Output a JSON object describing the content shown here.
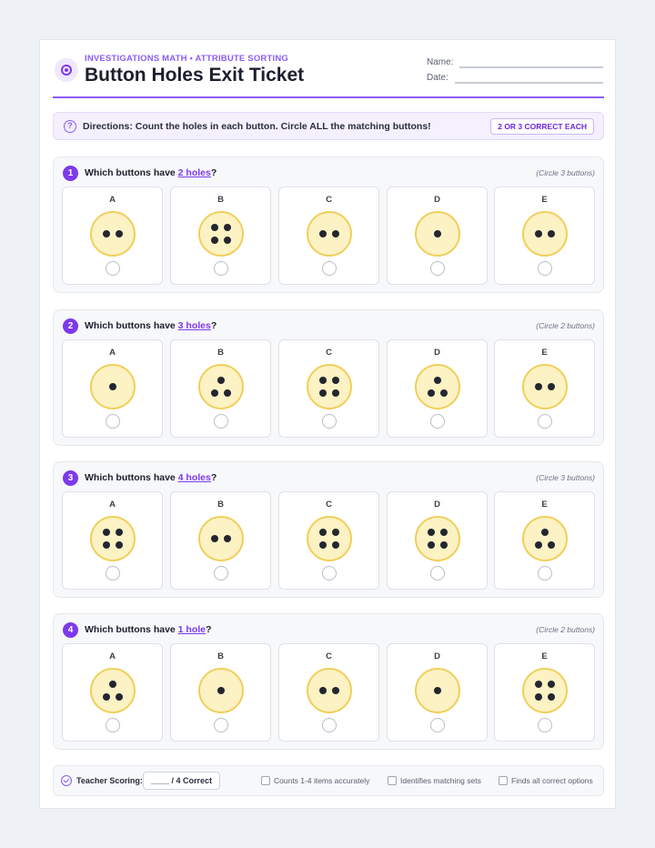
{
  "header": {
    "kicker": "INVESTIGATIONS MATH • ATTRIBUTE SORTING",
    "title": "Button Holes Exit Ticket",
    "name_label": "Name:",
    "date_label": "Date:",
    "logo_icon": "button-target-icon"
  },
  "directions": {
    "icon": "question-circle-icon",
    "icon_glyph": "?",
    "text": "Directions: Count the holes in each button. Circle ALL the matching buttons!",
    "badge": "2 OR 3 CORRECT EACH"
  },
  "questions": [
    {
      "number": "1",
      "prefix": "Which buttons have ",
      "highlight": "2 holes",
      "suffix": "?",
      "hint": "(Circle 3 buttons)",
      "buttons": [
        {
          "label": "A",
          "holes": 2
        },
        {
          "label": "B",
          "holes": 4
        },
        {
          "label": "C",
          "holes": 2
        },
        {
          "label": "D",
          "holes": 1
        },
        {
          "label": "E",
          "holes": 2
        }
      ]
    },
    {
      "number": "2",
      "prefix": "Which buttons have ",
      "highlight": "3 holes",
      "suffix": "?",
      "hint": "(Circle 2 buttons)",
      "buttons": [
        {
          "label": "A",
          "holes": 1
        },
        {
          "label": "B",
          "holes": 3
        },
        {
          "label": "C",
          "holes": 4
        },
        {
          "label": "D",
          "holes": 3
        },
        {
          "label": "E",
          "holes": 2
        }
      ]
    },
    {
      "number": "3",
      "prefix": "Which buttons have ",
      "highlight": "4 holes",
      "suffix": "?",
      "hint": "(Circle 3 buttons)",
      "buttons": [
        {
          "label": "A",
          "holes": 4
        },
        {
          "label": "B",
          "holes": 2
        },
        {
          "label": "C",
          "holes": 4
        },
        {
          "label": "D",
          "holes": 4
        },
        {
          "label": "E",
          "holes": 3
        }
      ]
    },
    {
      "number": "4",
      "prefix": "Which buttons have ",
      "highlight": "1 hole",
      "suffix": "?",
      "hint": "(Circle 2 buttons)",
      "buttons": [
        {
          "label": "A",
          "holes": 3
        },
        {
          "label": "B",
          "holes": 1
        },
        {
          "label": "C",
          "holes": 2
        },
        {
          "label": "D",
          "holes": 1
        },
        {
          "label": "E",
          "holes": 4
        }
      ]
    }
  ],
  "scoring": {
    "icon": "check-circle-icon",
    "label": "Teacher Scoring:",
    "box": "____ / 4 Correct",
    "criteria": [
      "Counts 1-4 items accurately",
      "Identifies matching sets",
      "Finds all correct options"
    ]
  },
  "colors": {
    "accent": "#7c3aed",
    "button_fill": "#fdf2c4",
    "button_rim": "#f0cf5a",
    "hole": "#23262f"
  }
}
